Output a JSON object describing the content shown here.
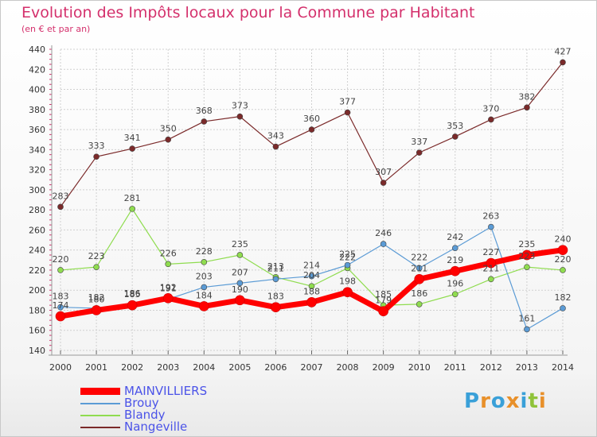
{
  "chart_data": {
    "type": "line",
    "title": "Evolution des Impôts locaux pour la Commune par Habitant",
    "subtitle": "(en € et par an)",
    "x": [
      "2000",
      "2001",
      "2002",
      "2003",
      "2004",
      "2005",
      "2006",
      "2007",
      "2008",
      "2009",
      "2010",
      "2011",
      "2012",
      "2013",
      "2014"
    ],
    "ylim": [
      140,
      440
    ],
    "yticks": [
      140,
      160,
      180,
      200,
      220,
      240,
      260,
      280,
      300,
      320,
      340,
      360,
      380,
      400,
      420,
      440
    ],
    "grid": true,
    "legend_position": "bottom-left",
    "series": [
      {
        "name": "MAINVILLIERS",
        "color": "#ff0000",
        "values": [
          174,
          180,
          185,
          192,
          184,
          190,
          183,
          188,
          198,
          179,
          211,
          219,
          227,
          235,
          240
        ],
        "labels": [
          "174",
          "180",
          "185",
          "192",
          "184",
          "190",
          "183",
          "188",
          "198",
          "179",
          "211",
          "219",
          "227",
          "235",
          "240"
        ]
      },
      {
        "name": "Brouy",
        "color": "#5b9bd5",
        "values": [
          183,
          182,
          186,
          191,
          203,
          207,
          211,
          214,
          225,
          246,
          222,
          242,
          263,
          161,
          182
        ],
        "labels": [
          "183",
          "182",
          "186",
          "191",
          "203",
          "207",
          "211",
          "214",
          "225",
          "246",
          "222",
          "242",
          "263",
          "161",
          "182"
        ]
      },
      {
        "name": "Blandy",
        "color": "#8fdc4f",
        "values": [
          220,
          223,
          281,
          226,
          228,
          235,
          213,
          204,
          222,
          185,
          186,
          196,
          211,
          223,
          220
        ],
        "labels": [
          "220",
          "223",
          "281",
          "226",
          "228",
          "235",
          "213",
          "204",
          "222",
          "185",
          "186",
          "196",
          "211",
          "223",
          "220"
        ]
      },
      {
        "name": "Nangeville",
        "color": "#7b2a2a",
        "values": [
          283,
          333,
          341,
          350,
          368,
          373,
          343,
          360,
          377,
          307,
          337,
          353,
          370,
          382,
          427
        ],
        "labels": [
          "283",
          "333",
          "341",
          "350",
          "368",
          "373",
          "343",
          "360",
          "377",
          "307",
          "337",
          "353",
          "370",
          "382",
          "427"
        ]
      }
    ]
  },
  "logo": {
    "letters": [
      {
        "ch": "P",
        "color": "#3aa0d8"
      },
      {
        "ch": "r",
        "color": "#e8902a"
      },
      {
        "ch": "o",
        "color": "#3aa0d8"
      },
      {
        "ch": "x",
        "color": "#e8902a"
      },
      {
        "ch": "i",
        "color": "#3aa0d8"
      },
      {
        "ch": "t",
        "color": "#8fc33a"
      },
      {
        "ch": "i",
        "color": "#e8902a"
      }
    ]
  }
}
